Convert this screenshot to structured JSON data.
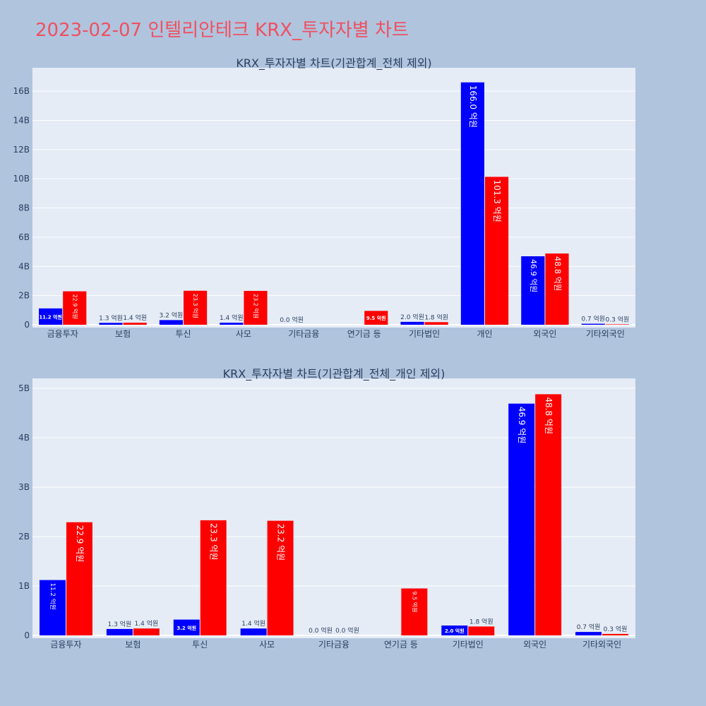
{
  "title": "2023-02-07 인텔리안테크 KRX_투자자별 차트",
  "colors": {
    "background": "#b0c4de",
    "plot_bg": "#e5ecf6",
    "title": "#ef5060",
    "series_a": "#0000ff",
    "series_b": "#ff0000"
  },
  "chart_data": [
    {
      "type": "bar",
      "title": "KRX_투자자별 차트(기관합계_전체 제외)",
      "categories": [
        "금융투자",
        "보험",
        "투신",
        "사모",
        "기타금융",
        "연기금 등",
        "기타법인",
        "개인",
        "외국인",
        "기타외국인"
      ],
      "series": [
        {
          "color": "#0000ff",
          "values": [
            1.12,
            0.13,
            0.32,
            0.14,
            0.0,
            null,
            0.2,
            16.6,
            4.69,
            0.07
          ],
          "labels": [
            "11.2 억원",
            "1.3 억원",
            "3.2 억원",
            "1.4 억원",
            "0.0 억원",
            "",
            "2.0 억원",
            "166.0 억원",
            "46.9 억원",
            "0.7 억원"
          ]
        },
        {
          "color": "#ff0000",
          "values": [
            2.29,
            0.14,
            2.33,
            2.32,
            null,
            0.95,
            0.18,
            10.13,
            4.88,
            0.03
          ],
          "labels": [
            "22.9 억원",
            "1.4 억원",
            "23.3 억원",
            "23.2 억원",
            "",
            "9.5 억원",
            "1.8 억원",
            "101.3 억원",
            "48.8 억원",
            "0.3 억원"
          ]
        }
      ],
      "ylim": [
        0,
        17.6
      ],
      "yticks": [
        0,
        2,
        4,
        6,
        8,
        10,
        12,
        14,
        16
      ],
      "ytick_labels": [
        "0",
        "2B",
        "4B",
        "6B",
        "8B",
        "10B",
        "12B",
        "14B",
        "16B"
      ],
      "grid": true
    },
    {
      "type": "bar",
      "title": "KRX_투자자별 차트(기관합계_전체_개인 제외)",
      "categories": [
        "금융투자",
        "보험",
        "투신",
        "사모",
        "기타금융",
        "연기금 등",
        "기타법인",
        "외국인",
        "기타외국인"
      ],
      "series": [
        {
          "color": "#0000ff",
          "values": [
            1.12,
            0.13,
            0.32,
            0.14,
            0.0,
            null,
            0.2,
            4.69,
            0.07
          ],
          "labels": [
            "11.2 억원",
            "1.3 억원",
            "3.2 억원",
            "1.4 억원",
            "0.0 억원",
            "",
            "2.0 억원",
            "46.9 억원",
            "0.7 억원"
          ]
        },
        {
          "color": "#ff0000",
          "values": [
            2.29,
            0.14,
            2.33,
            2.32,
            0.0,
            0.95,
            0.18,
            4.88,
            0.03
          ],
          "labels": [
            "22.9 억원",
            "1.4 억원",
            "23.3 억원",
            "23.2 억원",
            "0.0 억원",
            "9.5 억원",
            "1.8 억원",
            "48.8 억원",
            "0.3 억원"
          ]
        }
      ],
      "ylim": [
        0,
        5.2
      ],
      "yticks": [
        0,
        1,
        2,
        3,
        4,
        5
      ],
      "ytick_labels": [
        "0",
        "1B",
        "2B",
        "3B",
        "4B",
        "5B"
      ],
      "grid": true
    }
  ]
}
